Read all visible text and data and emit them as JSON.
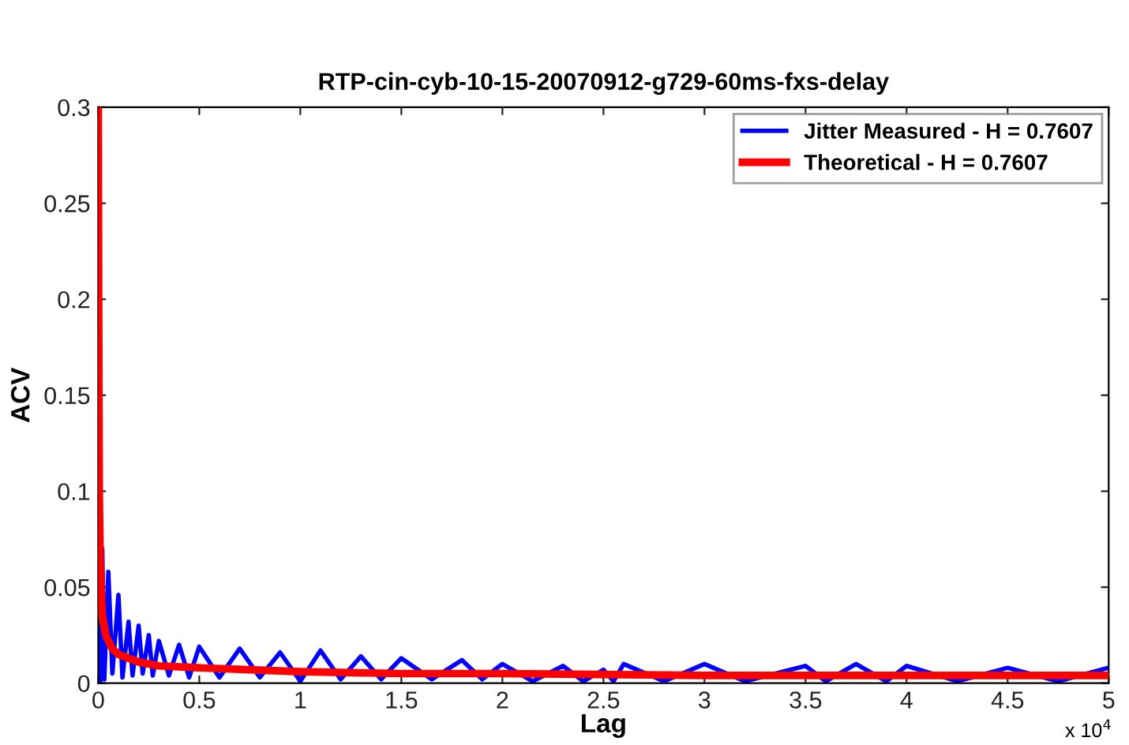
{
  "chart_data": {
    "type": "line",
    "title": "RTP-cin-cyb-10-15-20070912-g729-60ms-fxs-delay",
    "xlabel": "Lag",
    "ylabel": "ACV",
    "xlim": [
      0,
      5
    ],
    "xticks": [
      0,
      0.5,
      1,
      1.5,
      2,
      2.5,
      3,
      3.5,
      4,
      4.5,
      5
    ],
    "ylim": [
      0,
      0.3
    ],
    "yticks": [
      0,
      0.05,
      0.1,
      0.15,
      0.2,
      0.25,
      0.3
    ],
    "grid": false,
    "legend": "top right",
    "marker": "none",
    "line_style": "solid",
    "annotations": [
      "x 10$^{4}$"
    ],
    "series": [
      {
        "name": "Jitter Measured - H = 0.7607",
        "color": "#0000ff",
        "x": [
          0,
          0.01,
          0.02,
          0.03,
          0.05,
          0.07,
          0.1,
          0.12,
          0.15,
          0.17,
          0.2,
          0.22,
          0.25,
          0.27,
          0.3,
          0.35,
          0.4,
          0.45,
          0.5,
          0.6,
          0.7,
          0.8,
          0.9,
          1.0,
          1.1,
          1.2,
          1.3,
          1.4,
          1.5,
          1.65,
          1.8,
          1.9,
          2.0,
          2.15,
          2.3,
          2.4,
          2.5,
          2.55,
          2.6,
          2.8,
          3.0,
          3.2,
          3.5,
          3.6,
          3.75,
          3.9,
          4.0,
          4.25,
          4.5,
          4.75,
          5.0
        ],
        "values": [
          0.03,
          0.0,
          0.07,
          0.002,
          0.058,
          0.005,
          0.046,
          0.003,
          0.032,
          0.004,
          0.03,
          0.005,
          0.025,
          0.004,
          0.022,
          0.004,
          0.02,
          0.003,
          0.019,
          0.003,
          0.018,
          0.003,
          0.016,
          0.001,
          0.017,
          0.002,
          0.014,
          0.002,
          0.013,
          0.002,
          0.012,
          0.002,
          0.01,
          0.001,
          0.009,
          0.001,
          0.007,
          0.001,
          0.01,
          0.001,
          0.01,
          0.001,
          0.009,
          0.001,
          0.01,
          0.001,
          0.009,
          0.001,
          0.008,
          0.001,
          0.008
        ]
      },
      {
        "name": "Theoretical - H = 0.7607",
        "color": "#ff0000",
        "x": [
          0,
          0.002,
          0.005,
          0.01,
          0.02,
          0.04,
          0.07,
          0.1,
          0.2,
          0.3,
          0.5,
          0.75,
          1,
          1.5,
          2,
          3,
          4,
          5
        ],
        "values": [
          0.3,
          0.2,
          0.1,
          0.06,
          0.035,
          0.024,
          0.018,
          0.015,
          0.011,
          0.009,
          0.008,
          0.007,
          0.006,
          0.005,
          0.005,
          0.004,
          0.004,
          0.004
        ]
      }
    ]
  }
}
